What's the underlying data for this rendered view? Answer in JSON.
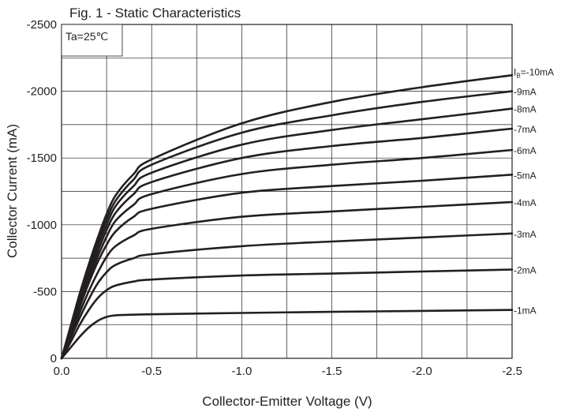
{
  "chart_data": {
    "type": "line",
    "title": "Fig. 1 - Static Characteristics",
    "condition": "Ta=25℃",
    "xlabel": "Collector-Emitter Voltage (V)",
    "ylabel": "Collector  Current (mA)",
    "xlim": [
      0,
      -2.5
    ],
    "ylim": [
      0,
      -2500
    ],
    "x_ticks": [
      "0.0",
      "-0.5",
      "-1.0",
      "-1.5",
      "-2.0",
      "-2.5"
    ],
    "y_ticks": [
      "0",
      "-500",
      "-1000",
      "-1500",
      "-2000",
      "-2500"
    ],
    "grid": true,
    "line_color": "#231f20",
    "series_label_prefix": "I",
    "series_label_sub": "B",
    "series_label_suffix": "=-10mA",
    "series": [
      {
        "name": "-1mA",
        "label": "-1mA",
        "x": [
          0,
          -0.05,
          -0.1,
          -0.15,
          -0.2,
          -0.25,
          -0.3,
          -0.4,
          -0.5,
          -1.0,
          -1.5,
          -2.0,
          -2.5
        ],
        "y": [
          0,
          -80,
          -160,
          -230,
          -280,
          -310,
          -322,
          -327,
          -330,
          -340,
          -348,
          -355,
          -362
        ]
      },
      {
        "name": "-2mA",
        "label": "-2mA",
        "x": [
          0,
          -0.05,
          -0.1,
          -0.15,
          -0.2,
          -0.25,
          -0.3,
          -0.4,
          -0.5,
          -1.0,
          -1.5,
          -2.0,
          -2.5
        ],
        "y": [
          0,
          -120,
          -250,
          -360,
          -450,
          -510,
          -545,
          -575,
          -590,
          -620,
          -635,
          -650,
          -665
        ]
      },
      {
        "name": "-3mA",
        "label": "-3mA",
        "x": [
          0,
          -0.05,
          -0.1,
          -0.15,
          -0.2,
          -0.25,
          -0.3,
          -0.4,
          -0.5,
          -1.0,
          -1.5,
          -2.0,
          -2.5
        ],
        "y": [
          0,
          -150,
          -300,
          -440,
          -560,
          -645,
          -700,
          -750,
          -780,
          -840,
          -875,
          -905,
          -935
        ]
      },
      {
        "name": "-4mA",
        "label": "-4mA",
        "x": [
          0,
          -0.05,
          -0.1,
          -0.15,
          -0.2,
          -0.25,
          -0.3,
          -0.4,
          -0.5,
          -1.0,
          -1.5,
          -2.0,
          -2.5
        ],
        "y": [
          0,
          -170,
          -340,
          -500,
          -640,
          -760,
          -840,
          -920,
          -970,
          -1060,
          -1100,
          -1135,
          -1170
        ]
      },
      {
        "name": "-5mA",
        "label": "-5mA",
        "x": [
          0,
          -0.05,
          -0.1,
          -0.15,
          -0.2,
          -0.25,
          -0.3,
          -0.4,
          -0.5,
          -1.0,
          -1.5,
          -2.0,
          -2.5
        ],
        "y": [
          0,
          -190,
          -380,
          -560,
          -720,
          -850,
          -950,
          -1060,
          -1120,
          -1240,
          -1290,
          -1330,
          -1375
        ]
      },
      {
        "name": "-6mA",
        "label": "-6mA",
        "x": [
          0,
          -0.05,
          -0.1,
          -0.15,
          -0.2,
          -0.25,
          -0.3,
          -0.4,
          -0.5,
          -1.0,
          -1.5,
          -2.0,
          -2.5
        ],
        "y": [
          0,
          -200,
          -400,
          -590,
          -760,
          -910,
          -1030,
          -1150,
          -1230,
          -1380,
          -1450,
          -1500,
          -1560
        ]
      },
      {
        "name": "-7mA",
        "label": "-7mA",
        "x": [
          0,
          -0.05,
          -0.1,
          -0.15,
          -0.2,
          -0.25,
          -0.3,
          -0.4,
          -0.5,
          -1.0,
          -1.5,
          -2.0,
          -2.5
        ],
        "y": [
          0,
          -210,
          -420,
          -620,
          -800,
          -960,
          -1090,
          -1230,
          -1320,
          -1500,
          -1590,
          -1650,
          -1720
        ]
      },
      {
        "name": "-8mA",
        "label": "-8mA",
        "x": [
          0,
          -0.05,
          -0.1,
          -0.15,
          -0.2,
          -0.25,
          -0.3,
          -0.4,
          -0.5,
          -1.0,
          -1.5,
          -2.0,
          -2.5
        ],
        "y": [
          0,
          -220,
          -440,
          -650,
          -840,
          -1000,
          -1140,
          -1290,
          -1390,
          -1600,
          -1710,
          -1790,
          -1870
        ]
      },
      {
        "name": "-9mA",
        "label": "-9mA",
        "x": [
          0,
          -0.05,
          -0.1,
          -0.15,
          -0.2,
          -0.25,
          -0.3,
          -0.4,
          -0.5,
          -1.0,
          -1.5,
          -2.0,
          -2.5
        ],
        "y": [
          0,
          -230,
          -460,
          -680,
          -870,
          -1040,
          -1180,
          -1340,
          -1450,
          -1690,
          -1820,
          -1920,
          -2000
        ]
      },
      {
        "name": "-10mA",
        "label": "",
        "x": [
          0,
          -0.05,
          -0.1,
          -0.15,
          -0.2,
          -0.25,
          -0.3,
          -0.4,
          -0.5,
          -1.0,
          -1.5,
          -2.0,
          -2.5
        ],
        "y": [
          0,
          -240,
          -480,
          -700,
          -900,
          -1080,
          -1220,
          -1380,
          -1490,
          -1760,
          -1920,
          -2030,
          -2120
        ]
      }
    ]
  }
}
